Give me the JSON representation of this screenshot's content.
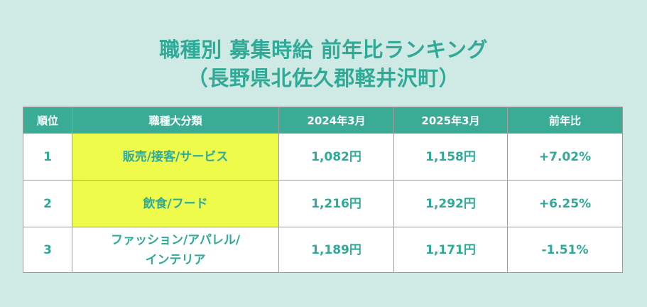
{
  "title": {
    "line1": "職種別 募集時給 前年比ランキング",
    "line2": "（長野県北佐久郡軽井沢町）"
  },
  "table": {
    "headers": [
      "順位",
      "職種大分類",
      "2024年3月",
      "2025年3月",
      "前年比"
    ],
    "rows": [
      {
        "rank": "1",
        "category": "販売/接客/サービス",
        "wage_2024": "1,082円",
        "wage_2025": "1,158円",
        "change": "+7.02%",
        "highlight": true
      },
      {
        "rank": "2",
        "category": "飲食/フード",
        "wage_2024": "1,216円",
        "wage_2025": "1,292円",
        "change": "+6.25%",
        "highlight": true
      },
      {
        "rank": "3",
        "category_line1": "ファッション/アパレル/",
        "category_line2": "インテリア",
        "wage_2024": "1,189円",
        "wage_2025": "1,171円",
        "change": "-1.51%",
        "highlight": false
      }
    ]
  },
  "colors": {
    "background": "#cfe9e4",
    "accent": "#2faa97",
    "header_bg": "#3aac96",
    "highlight": "#eefb4a"
  }
}
